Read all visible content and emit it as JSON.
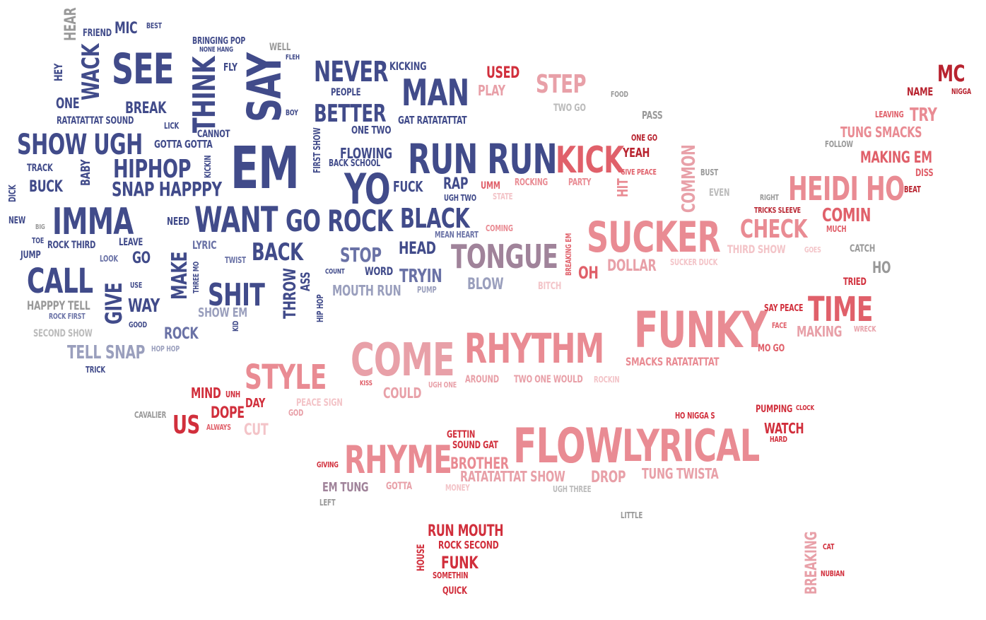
{
  "palette": {
    "navy": "#414b8a",
    "navy_light": "#6a72a6",
    "gray_blue": "#9a9fbd",
    "gray": "#999999",
    "light_gray": "#bbbbbb",
    "mauve": "#a0839a",
    "pink": "#e8a0a8",
    "light_pink": "#f3c4c8",
    "salmon": "#e98b93",
    "coral": "#e0606a",
    "red": "#d12f3c",
    "dark_red": "#b8232f"
  },
  "words": [
    {
      "text": "HEAR",
      "c": "gray",
      "v": true
    },
    {
      "text": "FRIEND",
      "c": "navy"
    },
    {
      "text": "MIC",
      "c": "navy"
    },
    {
      "text": "BEST",
      "c": "navy"
    },
    {
      "text": "BRINGING POP",
      "c": "navy"
    },
    {
      "text": "NONE HANG",
      "c": "navy"
    },
    {
      "text": "WELL",
      "c": "gray"
    },
    {
      "text": "FLEH",
      "c": "navy"
    },
    {
      "text": "HEY",
      "c": "navy",
      "v": true
    },
    {
      "text": "WACK",
      "c": "navy",
      "v": true
    },
    {
      "text": "SEE",
      "c": "navy"
    },
    {
      "text": "THINK",
      "c": "navy",
      "v": true
    },
    {
      "text": "FLY",
      "c": "navy"
    },
    {
      "text": "SAY",
      "c": "navy",
      "v": true
    },
    {
      "text": "NEVER",
      "c": "navy"
    },
    {
      "text": "KICKING",
      "c": "navy"
    },
    {
      "text": "USED",
      "c": "red"
    },
    {
      "text": "PLAY",
      "c": "pink"
    },
    {
      "text": "STEP",
      "c": "pink"
    },
    {
      "text": "MC",
      "c": "dark_red"
    },
    {
      "text": "NAME",
      "c": "dark_red"
    },
    {
      "text": "NIGGA",
      "c": "dark_red"
    },
    {
      "text": "ONE",
      "c": "navy"
    },
    {
      "text": "BREAK",
      "c": "navy"
    },
    {
      "text": "PEOPLE",
      "c": "navy"
    },
    {
      "text": "MAN",
      "c": "navy"
    },
    {
      "text": "FOOD",
      "c": "gray"
    },
    {
      "text": "TWO GO",
      "c": "light_gray"
    },
    {
      "text": "RATATATTAT SOUND",
      "c": "navy"
    },
    {
      "text": "BOY",
      "c": "navy"
    },
    {
      "text": "BETTER",
      "c": "navy"
    },
    {
      "text": "GAT RATATATTAT",
      "c": "navy"
    },
    {
      "text": "PASS",
      "c": "gray"
    },
    {
      "text": "LEAVING",
      "c": "coral"
    },
    {
      "text": "TRY",
      "c": "salmon"
    },
    {
      "text": "LICK",
      "c": "navy"
    },
    {
      "text": "CANNOT",
      "c": "navy"
    },
    {
      "text": "ONE TWO",
      "c": "navy"
    },
    {
      "text": "TUNG SMACKS",
      "c": "salmon"
    },
    {
      "text": "SHOW UGH",
      "c": "navy"
    },
    {
      "text": "GOTTA GOTTA",
      "c": "navy"
    },
    {
      "text": "FIRST SHOW",
      "c": "navy",
      "v": true
    },
    {
      "text": "EM",
      "c": "navy"
    },
    {
      "text": "FLOWING",
      "c": "navy"
    },
    {
      "text": "RUN RUN",
      "c": "navy"
    },
    {
      "text": "KICK",
      "c": "coral"
    },
    {
      "text": "ONE GO",
      "c": "dark_red"
    },
    {
      "text": "YEAH",
      "c": "dark_red"
    },
    {
      "text": "FOLLOW",
      "c": "gray"
    },
    {
      "text": "TRACK",
      "c": "navy"
    },
    {
      "text": "BABY",
      "c": "navy",
      "v": true
    },
    {
      "text": "HIPHOP",
      "c": "navy"
    },
    {
      "text": "KICKIN",
      "c": "navy",
      "v": true
    },
    {
      "text": "BACK SCHOOL",
      "c": "navy"
    },
    {
      "text": "COMMON",
      "c": "pink",
      "v": true
    },
    {
      "text": "MAKING EM",
      "c": "coral"
    },
    {
      "text": "GIVE PEACE",
      "c": "coral"
    },
    {
      "text": "BUST",
      "c": "gray"
    },
    {
      "text": "DISS",
      "c": "coral"
    },
    {
      "text": "DICK",
      "c": "navy",
      "v": true
    },
    {
      "text": "BUCK",
      "c": "navy"
    },
    {
      "text": "SNAP HAPPPY",
      "c": "navy"
    },
    {
      "text": "YO",
      "c": "navy"
    },
    {
      "text": "FUCK",
      "c": "navy"
    },
    {
      "text": "RAP",
      "c": "navy"
    },
    {
      "text": "UMM",
      "c": "coral"
    },
    {
      "text": "ROCKING",
      "c": "salmon"
    },
    {
      "text": "PARTY",
      "c": "salmon"
    },
    {
      "text": "HIT",
      "c": "salmon",
      "v": true
    },
    {
      "text": "EVEN",
      "c": "light_gray"
    },
    {
      "text": "HEIDI HO",
      "c": "salmon"
    },
    {
      "text": "BEAT",
      "c": "dark_red"
    },
    {
      "text": "UGH TWO",
      "c": "navy"
    },
    {
      "text": "STATE",
      "c": "light_pink"
    },
    {
      "text": "RIGHT",
      "c": "gray"
    },
    {
      "text": "NEW",
      "c": "navy"
    },
    {
      "text": "BIG",
      "c": "gray"
    },
    {
      "text": "IMMA",
      "c": "navy"
    },
    {
      "text": "NEED",
      "c": "navy"
    },
    {
      "text": "WANT",
      "c": "navy"
    },
    {
      "text": "GO ROCK",
      "c": "navy"
    },
    {
      "text": "BLACK",
      "c": "navy"
    },
    {
      "text": "TRICKS SLEEVE",
      "c": "dark_red"
    },
    {
      "text": "COMIN",
      "c": "coral"
    },
    {
      "text": "TOE",
      "c": "navy"
    },
    {
      "text": "ROCK THIRD",
      "c": "navy"
    },
    {
      "text": "LEAVE",
      "c": "navy"
    },
    {
      "text": "LYRIC",
      "c": "navy_light"
    },
    {
      "text": "COMING",
      "c": "salmon"
    },
    {
      "text": "SUCKER",
      "c": "salmon"
    },
    {
      "text": "CHECK",
      "c": "salmon"
    },
    {
      "text": "MUCH",
      "c": "coral"
    },
    {
      "text": "JUMP",
      "c": "navy"
    },
    {
      "text": "GO",
      "c": "navy"
    },
    {
      "text": "MEAN HEART",
      "c": "navy_light"
    },
    {
      "text": "HEAD",
      "c": "navy"
    },
    {
      "text": "BACK",
      "c": "navy"
    },
    {
      "text": "STOP",
      "c": "navy_light"
    },
    {
      "text": "TONGUE",
      "c": "mauve"
    },
    {
      "text": "BREAKING EM",
      "c": "coral",
      "v": true
    },
    {
      "text": "THIRD SHOW",
      "c": "light_pink"
    },
    {
      "text": "GOES",
      "c": "light_pink"
    },
    {
      "text": "CATCH",
      "c": "gray"
    },
    {
      "text": "LOOK",
      "c": "navy_light"
    },
    {
      "text": "TWIST",
      "c": "navy_light"
    },
    {
      "text": "MAKE",
      "c": "navy",
      "v": true
    },
    {
      "text": "THREE MO",
      "c": "navy",
      "v": true
    },
    {
      "text": "OH",
      "c": "coral"
    },
    {
      "text": "DOLLAR",
      "c": "pink"
    },
    {
      "text": "SUCKER DUCK",
      "c": "light_pink"
    },
    {
      "text": "HO",
      "c": "gray"
    },
    {
      "text": "CALL",
      "c": "navy"
    },
    {
      "text": "COUNT",
      "c": "navy"
    },
    {
      "text": "WORD",
      "c": "navy"
    },
    {
      "text": "TRYIN",
      "c": "navy_light"
    },
    {
      "text": "TRIED",
      "c": "red"
    },
    {
      "text": "USE",
      "c": "navy"
    },
    {
      "text": "THROW",
      "c": "navy",
      "v": true
    },
    {
      "text": "ASS",
      "c": "navy",
      "v": true
    },
    {
      "text": "BLOW",
      "c": "gray_blue"
    },
    {
      "text": "BITCH",
      "c": "light_pink"
    },
    {
      "text": "GIVE",
      "c": "navy",
      "v": true
    },
    {
      "text": "SHIT",
      "c": "navy"
    },
    {
      "text": "MOUTH RUN",
      "c": "gray_blue"
    },
    {
      "text": "PUMP",
      "c": "gray_blue"
    },
    {
      "text": "WAY",
      "c": "navy"
    },
    {
      "text": "TIME",
      "c": "coral"
    },
    {
      "text": "SAY PEACE",
      "c": "red"
    },
    {
      "text": "HAPPPY TELL",
      "c": "gray"
    },
    {
      "text": "SHOW EM",
      "c": "gray_blue"
    },
    {
      "text": "FUNKY",
      "c": "salmon"
    },
    {
      "text": "ROCK FIRST",
      "c": "navy_light"
    },
    {
      "text": "HIP HOP",
      "c": "navy",
      "v": true
    },
    {
      "text": "KID",
      "c": "navy",
      "v": true
    },
    {
      "text": "FACE",
      "c": "coral"
    },
    {
      "text": "GOOD",
      "c": "navy"
    },
    {
      "text": "MAKING",
      "c": "pink"
    },
    {
      "text": "WRECK",
      "c": "pink"
    },
    {
      "text": "SECOND SHOW",
      "c": "light_gray"
    },
    {
      "text": "ROCK",
      "c": "navy_light"
    },
    {
      "text": "RHYTHM",
      "c": "salmon"
    },
    {
      "text": "MO GO",
      "c": "coral"
    },
    {
      "text": "TELL SNAP",
      "c": "gray_blue"
    },
    {
      "text": "HOP HOP",
      "c": "gray_blue"
    },
    {
      "text": "COME",
      "c": "pink"
    },
    {
      "text": "SMACKS RATATATTAT",
      "c": "salmon"
    },
    {
      "text": "TRICK",
      "c": "navy"
    },
    {
      "text": "STYLE",
      "c": "salmon"
    },
    {
      "text": "KISS",
      "c": "coral"
    },
    {
      "text": "UGH ONE",
      "c": "pink"
    },
    {
      "text": "AROUND",
      "c": "pink"
    },
    {
      "text": "TWO ONE WOULD",
      "c": "pink"
    },
    {
      "text": "ROCKIN",
      "c": "light_pink"
    },
    {
      "text": "COULD",
      "c": "pink"
    },
    {
      "text": "MIND",
      "c": "red"
    },
    {
      "text": "UNH",
      "c": "red"
    },
    {
      "text": "DAY",
      "c": "red"
    },
    {
      "text": "PEACE SIGN",
      "c": "light_pink"
    },
    {
      "text": "CAVALIER",
      "c": "gray"
    },
    {
      "text": "DOPE",
      "c": "red"
    },
    {
      "text": "GOD",
      "c": "pink"
    },
    {
      "text": "HO NIGGA S",
      "c": "red"
    },
    {
      "text": "PUMPING",
      "c": "red"
    },
    {
      "text": "CLOCK",
      "c": "red"
    },
    {
      "text": "US",
      "c": "red"
    },
    {
      "text": "ALWAYS",
      "c": "coral"
    },
    {
      "text": "CUT",
      "c": "light_pink"
    },
    {
      "text": "WATCH",
      "c": "red"
    },
    {
      "text": "HARD",
      "c": "red"
    },
    {
      "text": "GETTIN",
      "c": "red"
    },
    {
      "text": "SOUND GAT",
      "c": "red"
    },
    {
      "text": "FLOW",
      "c": "salmon"
    },
    {
      "text": "LYRICAL",
      "c": "salmon"
    },
    {
      "text": "RHYME",
      "c": "salmon"
    },
    {
      "text": "GIVING",
      "c": "red"
    },
    {
      "text": "BROTHER",
      "c": "salmon"
    },
    {
      "text": "RATATATTAT SHOW",
      "c": "pink"
    },
    {
      "text": "DROP",
      "c": "pink"
    },
    {
      "text": "TUNG TWISTA",
      "c": "pink"
    },
    {
      "text": "EM TUNG",
      "c": "mauve"
    },
    {
      "text": "GOTTA",
      "c": "pink"
    },
    {
      "text": "MONEY",
      "c": "light_pink"
    },
    {
      "text": "UGH THREE",
      "c": "light_gray"
    },
    {
      "text": "LEFT",
      "c": "gray"
    },
    {
      "text": "LITTLE",
      "c": "gray"
    },
    {
      "text": "RUN MOUTH",
      "c": "red"
    },
    {
      "text": "HOUSE",
      "c": "red",
      "v": true
    },
    {
      "text": "ROCK SECOND",
      "c": "red"
    },
    {
      "text": "FUNK",
      "c": "red"
    },
    {
      "text": "SOMETHIN",
      "c": "red"
    },
    {
      "text": "QUICK",
      "c": "red"
    },
    {
      "text": "BREAKING",
      "c": "pink",
      "v": true
    },
    {
      "text": "CAT",
      "c": "red"
    },
    {
      "text": "NUBIAN",
      "c": "red"
    }
  ]
}
